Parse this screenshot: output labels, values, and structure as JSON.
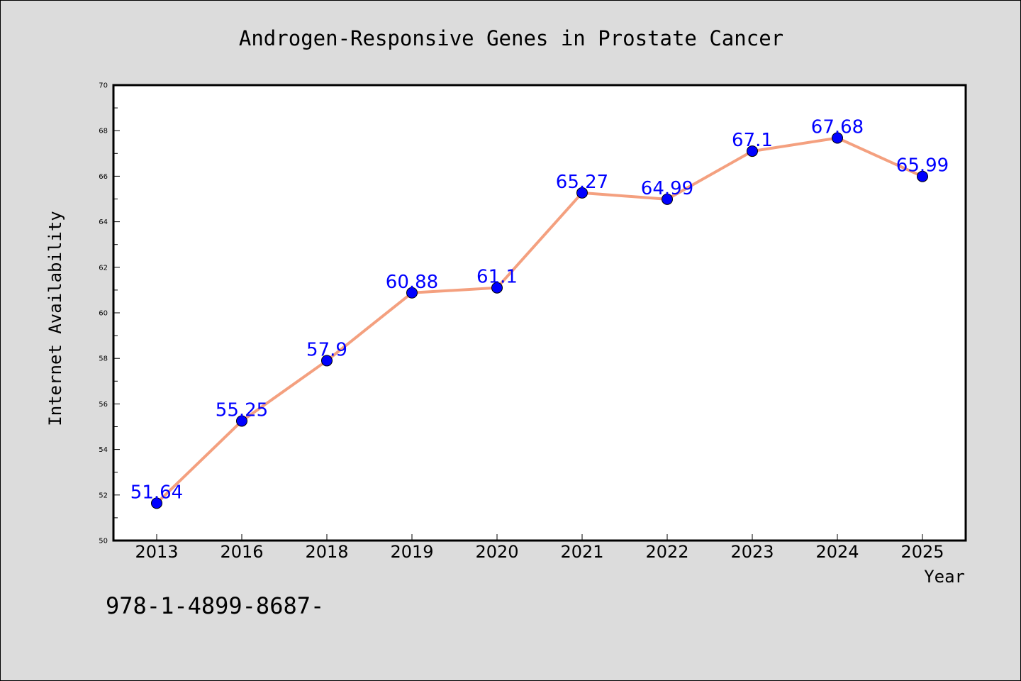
{
  "chart_data": {
    "type": "line",
    "title": "Androgen-Responsive Genes in Prostate Cancer",
    "xlabel": "Year",
    "ylabel": "Internet Availability",
    "categories": [
      "2013",
      "2016",
      "2018",
      "2019",
      "2020",
      "2021",
      "2022",
      "2023",
      "2024",
      "2025"
    ],
    "values": [
      51.64,
      55.25,
      57.9,
      60.88,
      61.1,
      65.27,
      64.99,
      67.1,
      67.68,
      65.99
    ],
    "data_labels": [
      "51.64",
      "55.25",
      "57.9",
      "60.88",
      "61.1",
      "65.27",
      "64.99",
      "67.1",
      "67.68",
      "65.99"
    ],
    "ylim": [
      50,
      70
    ],
    "yticks": [
      50,
      52,
      54,
      56,
      58,
      60,
      62,
      64,
      66,
      68,
      70
    ],
    "grid": false,
    "legend": "none",
    "colors": {
      "line": "#f4a07f",
      "marker": "#0000ff",
      "label": "#0000ff",
      "background": "#dcdcdc",
      "plot_area": "#ffffff"
    }
  },
  "footnote": "978-1-4899-8687-"
}
